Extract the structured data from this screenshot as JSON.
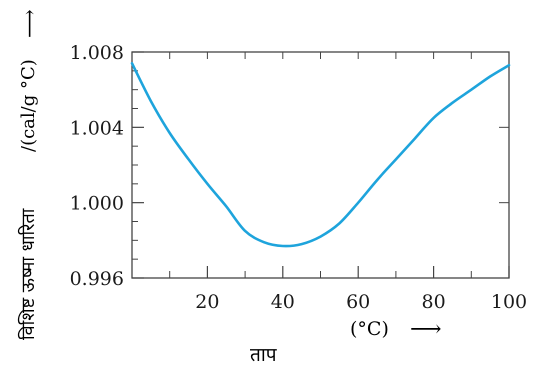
{
  "chart_data": {
    "type": "line",
    "title": "",
    "xlabel_hindi": "ताप",
    "xlabel_unit": "(°C)",
    "x_arrow": "⟶",
    "ylabel_hindi": "विशिष्ट ऊष्मा धारिता",
    "ylabel_unit": "/(cal/g °C)",
    "y_arrow": "⟶",
    "xlim": [
      0,
      100
    ],
    "ylim": [
      0.996,
      1.008
    ],
    "xticks": [
      20,
      40,
      60,
      80,
      100
    ],
    "xtick_labels": [
      "20",
      "40",
      "60",
      "80",
      "100"
    ],
    "yticks": [
      0.996,
      1.0,
      1.004,
      1.008
    ],
    "ytick_labels": [
      "0.996",
      "1.000",
      "1.004",
      "1.008"
    ],
    "grid": false,
    "line_color": "#1ea4dc",
    "series": [
      {
        "x": [
          0,
          5,
          10,
          15,
          20,
          25,
          30,
          35,
          40,
          45,
          50,
          55,
          60,
          65,
          70,
          75,
          80,
          85,
          90,
          95,
          100
        ],
        "values": [
          1.0074,
          1.0054,
          1.0037,
          1.0023,
          1.001,
          0.9998,
          0.9985,
          0.9979,
          0.9977,
          0.9978,
          0.9982,
          0.9989,
          1.0,
          1.0012,
          1.0023,
          1.0034,
          1.0045,
          1.0053,
          1.006,
          1.0067,
          1.0073
        ]
      }
    ]
  }
}
